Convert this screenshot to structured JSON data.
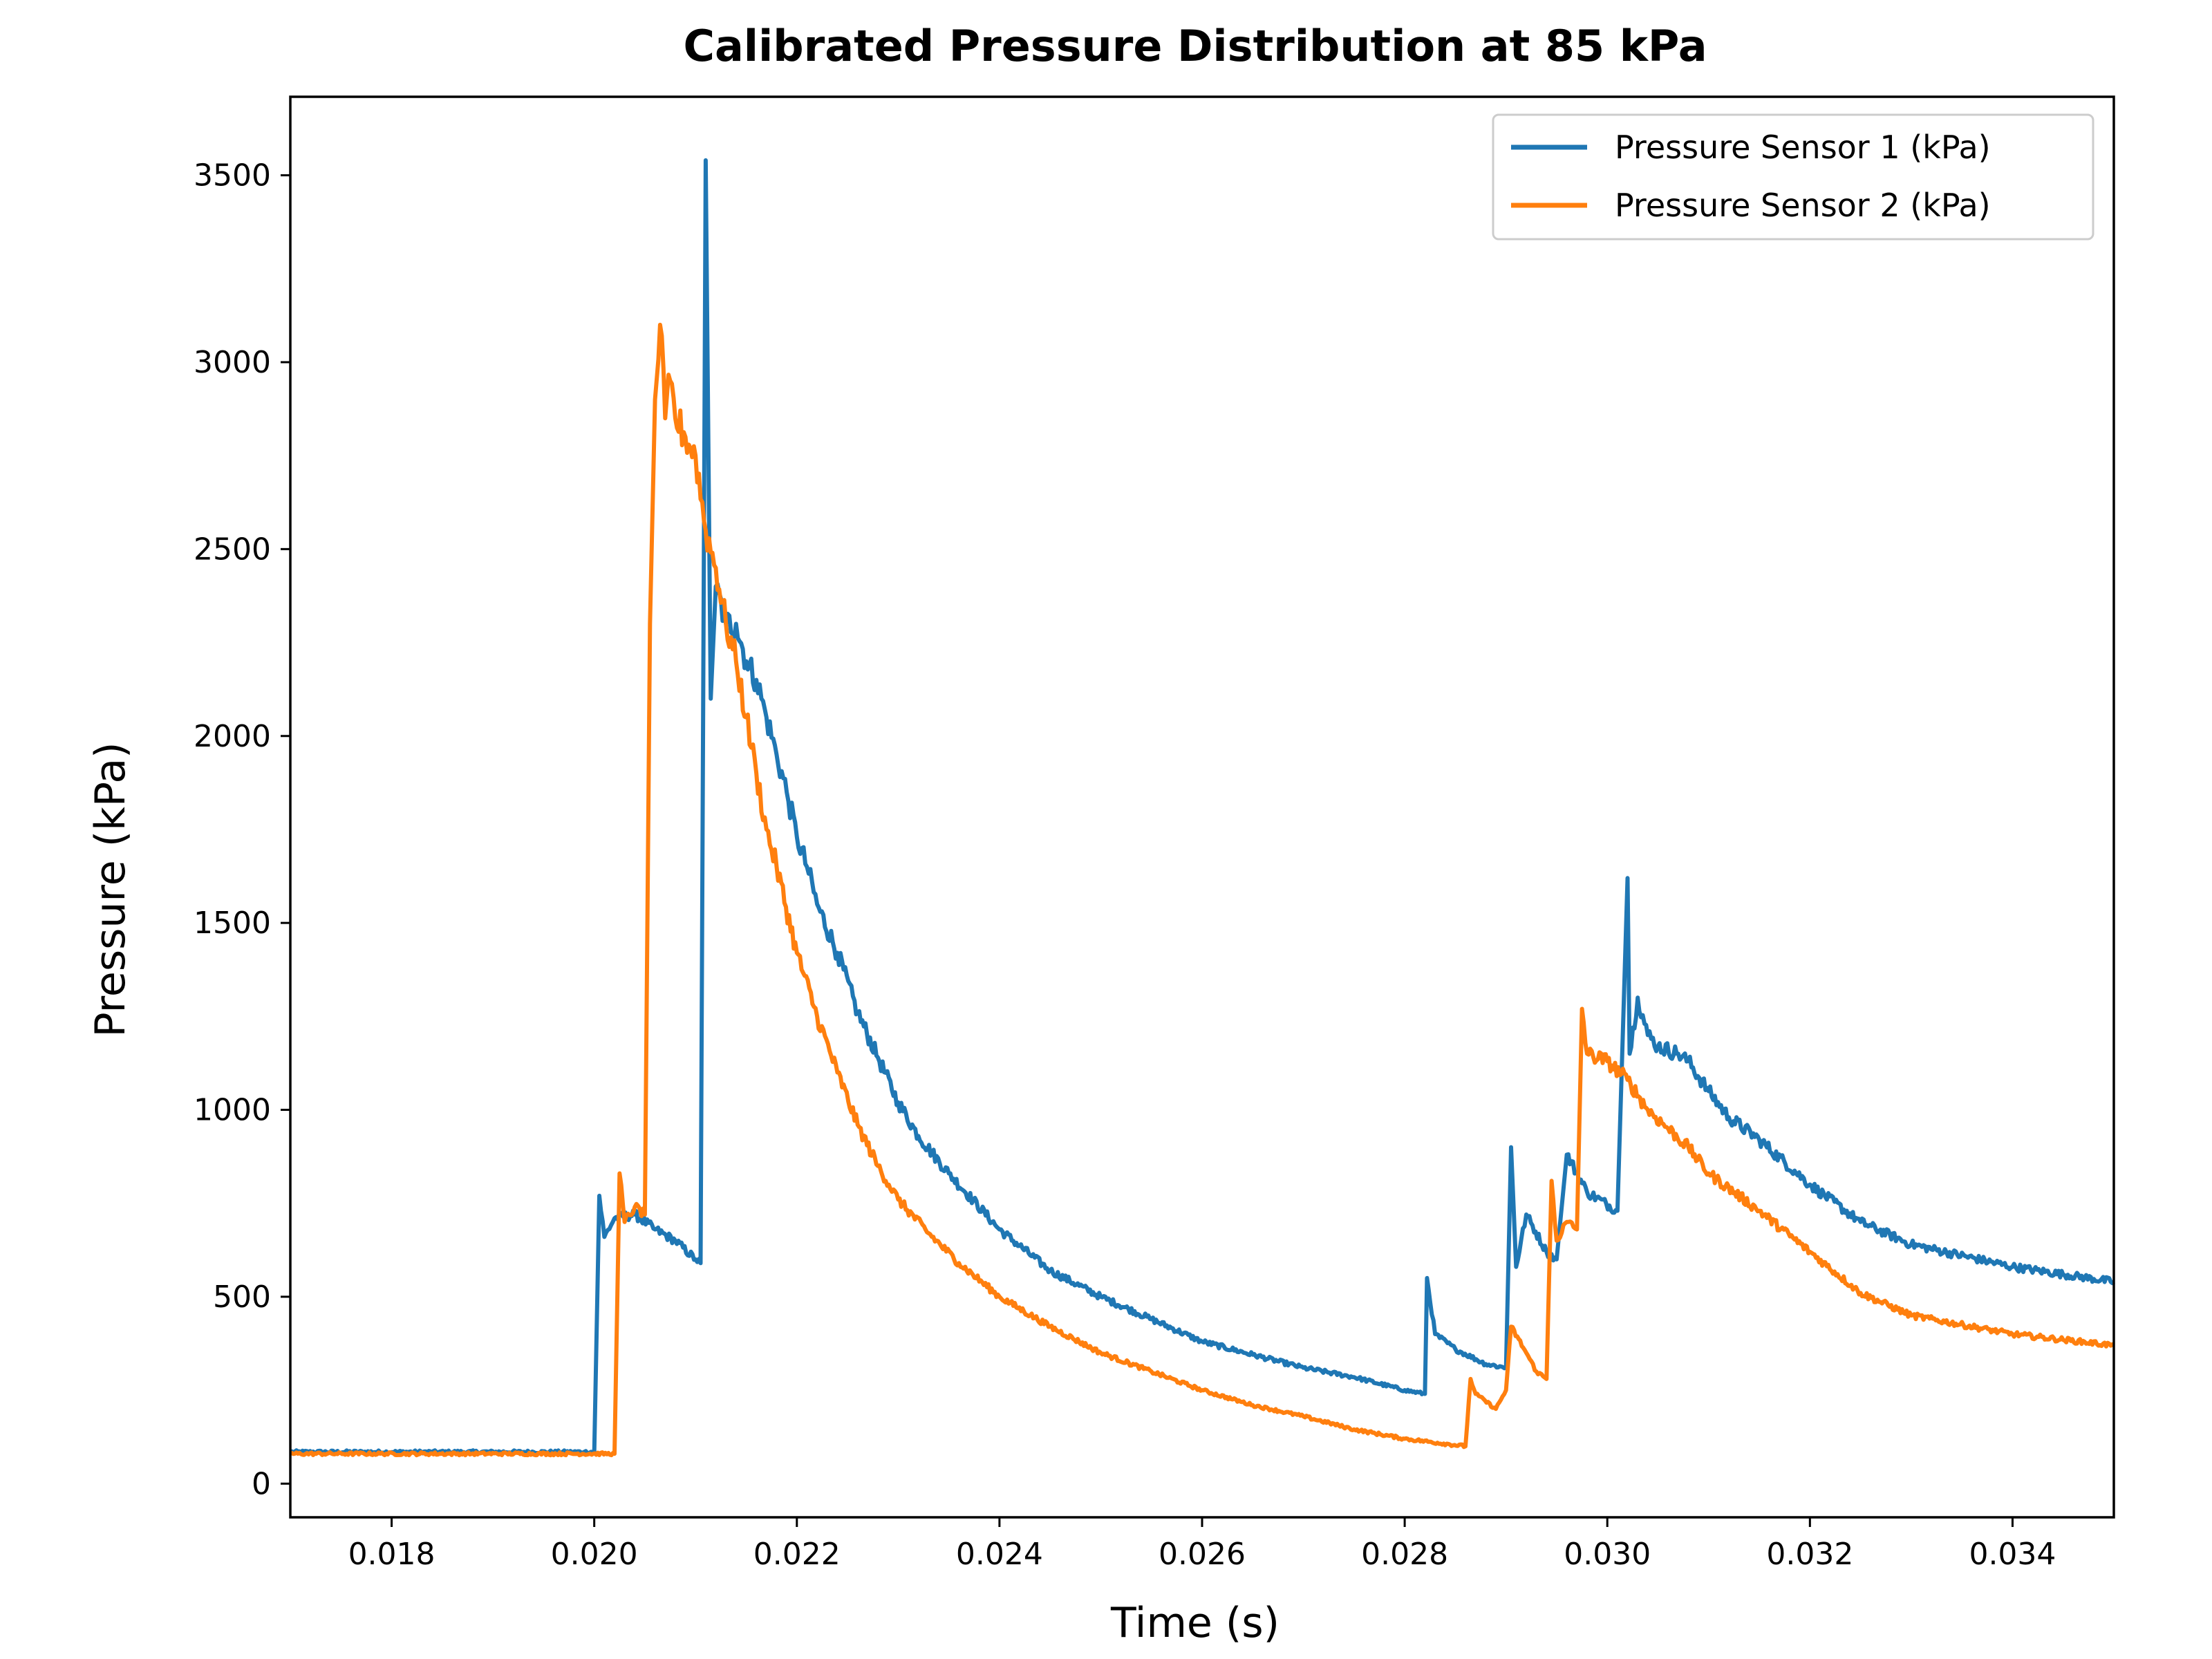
{
  "chart_data": {
    "type": "line",
    "title": "Calibrated Pressure Distribution at 85 kPa",
    "xlabel": "Time (s)",
    "ylabel": "Pressure (kPa)",
    "xlim": [
      0.017,
      0.035
    ],
    "ylim": [
      -90,
      3710
    ],
    "xticks": [
      0.018,
      0.02,
      0.022,
      0.024,
      0.026,
      0.028,
      0.03,
      0.032,
      0.034
    ],
    "xtick_labels": [
      "0.018",
      "0.020",
      "0.022",
      "0.024",
      "0.026",
      "0.028",
      "0.030",
      "0.032",
      "0.034"
    ],
    "yticks": [
      0,
      500,
      1000,
      1500,
      2000,
      2500,
      3000,
      3500
    ],
    "ytick_labels": [
      "0",
      "500",
      "1000",
      "1500",
      "2000",
      "2500",
      "3000",
      "3500"
    ],
    "grid": false,
    "legend_position": "top-right",
    "series": [
      {
        "name": "Pressure Sensor 1 (kPa)",
        "color": "#1f77b4",
        "x": [
          0.017,
          0.0199,
          0.02,
          0.02005,
          0.0201,
          0.0202,
          0.0204,
          0.0206,
          0.0208,
          0.021,
          0.02105,
          0.0211,
          0.02115,
          0.0212,
          0.0213,
          0.0214,
          0.0215,
          0.0216,
          0.0217,
          0.0218,
          0.0219,
          0.022,
          0.0221,
          0.0222,
          0.0224,
          0.0226,
          0.0228,
          0.023,
          0.0232,
          0.0235,
          0.024,
          0.0245,
          0.025,
          0.0255,
          0.026,
          0.0265,
          0.027,
          0.0275,
          0.028,
          0.0282,
          0.02822,
          0.0283,
          0.0285,
          0.0288,
          0.029,
          0.02905,
          0.0291,
          0.0292,
          0.0294,
          0.0295,
          0.0296,
          0.0298,
          0.0301,
          0.0302,
          0.03022,
          0.0303,
          0.0304,
          0.0305,
          0.0307,
          0.0308,
          0.031,
          0.0312,
          0.0315,
          0.032,
          0.0325,
          0.033,
          0.034,
          0.035
        ],
        "y": [
          85,
          85,
          85,
          770,
          660,
          710,
          720,
          680,
          650,
          600,
          590,
          3540,
          2100,
          2400,
          2300,
          2300,
          2200,
          2150,
          2050,
          1950,
          1850,
          1730,
          1650,
          1550,
          1420,
          1260,
          1140,
          1020,
          930,
          830,
          680,
          570,
          500,
          440,
          380,
          345,
          310,
          285,
          250,
          240,
          550,
          400,
          360,
          320,
          310,
          900,
          580,
          720,
          620,
          600,
          880,
          780,
          730,
          1620,
          1150,
          1300,
          1200,
          1170,
          1150,
          1130,
          1050,
          980,
          920,
          800,
          700,
          640,
          580,
          540
        ]
      },
      {
        "name": "Pressure Sensor 2 (kPa)",
        "color": "#ff7f0e",
        "x": [
          0.017,
          0.0202,
          0.02025,
          0.0203,
          0.0204,
          0.0205,
          0.02055,
          0.0206,
          0.02065,
          0.0207,
          0.02075,
          0.0208,
          0.0209,
          0.021,
          0.0211,
          0.0212,
          0.0213,
          0.0214,
          0.0215,
          0.0216,
          0.0217,
          0.0218,
          0.022,
          0.0222,
          0.0224,
          0.0226,
          0.0228,
          0.023,
          0.0233,
          0.0236,
          0.024,
          0.0245,
          0.025,
          0.0255,
          0.026,
          0.0265,
          0.027,
          0.0275,
          0.028,
          0.0286,
          0.02865,
          0.0287,
          0.0289,
          0.029,
          0.02905,
          0.0292,
          0.0293,
          0.0294,
          0.02945,
          0.0295,
          0.0296,
          0.0297,
          0.02975,
          0.0298,
          0.03,
          0.0302,
          0.0304,
          0.0306,
          0.0308,
          0.031,
          0.0315,
          0.032,
          0.0325,
          0.033,
          0.034,
          0.035
        ],
        "y": [
          80,
          80,
          830,
          700,
          740,
          720,
          2300,
          2900,
          3100,
          2850,
          2950,
          2850,
          2800,
          2750,
          2550,
          2450,
          2300,
          2200,
          2050,
          1900,
          1750,
          1650,
          1420,
          1250,
          1100,
          960,
          850,
          760,
          670,
          590,
          500,
          420,
          350,
          300,
          250,
          210,
          180,
          145,
          120,
          100,
          280,
          240,
          200,
          250,
          420,
          350,
          300,
          280,
          810,
          650,
          700,
          680,
          1270,
          1150,
          1130,
          1080,
          1000,
          950,
          900,
          830,
          730,
          620,
          510,
          450,
          400,
          370
        ]
      }
    ]
  }
}
